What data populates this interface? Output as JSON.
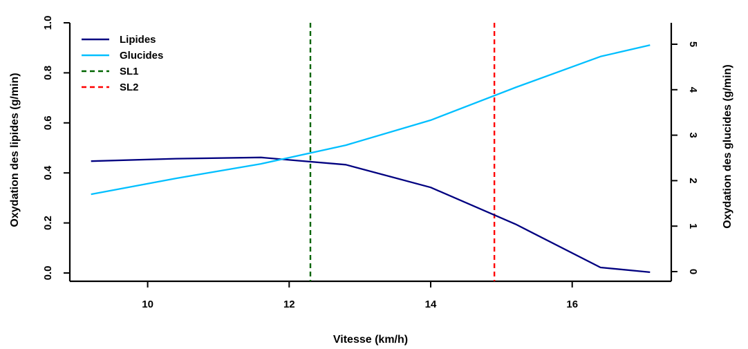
{
  "chart_data": {
    "type": "line",
    "xlabel": "Vitesse (km/h)",
    "ylabel_left": "Oxydation des lipides (g/min)",
    "ylabel_right": "Oxydation des glucides (g/min)",
    "xlim": [
      8.9,
      17.4
    ],
    "ylim_left": [
      -0.04,
      1.0
    ],
    "ylim_right": [
      -0.1,
      5.4
    ],
    "x_ticks": [
      "10",
      "12",
      "14",
      "16"
    ],
    "y_left_ticks": [
      "0.0",
      "0.2",
      "0.4",
      "0.6",
      "0.8",
      "1.0"
    ],
    "y_right_ticks": [
      "0",
      "1",
      "2",
      "3",
      "4",
      "5"
    ],
    "series": [
      {
        "name": "Lipides",
        "axis": "left",
        "color": "#000080",
        "x": [
          9.2,
          10.4,
          11.6,
          12.0,
          12.8,
          14.0,
          15.2,
          16.4,
          17.1
        ],
        "y": [
          0.447,
          0.457,
          0.462,
          0.452,
          0.433,
          0.342,
          0.195,
          0.022,
          0.003
        ]
      },
      {
        "name": "Glucides",
        "axis": "right",
        "color": "#00BFFF",
        "x": [
          9.2,
          10.4,
          11.6,
          12.8,
          14.0,
          15.2,
          16.4,
          17.1
        ],
        "y": [
          1.7,
          2.05,
          2.37,
          2.78,
          3.33,
          4.05,
          4.73,
          4.98
        ]
      }
    ],
    "vlines": [
      {
        "name": "SL1",
        "x": 12.3,
        "color": "#006400"
      },
      {
        "name": "SL2",
        "x": 14.9,
        "color": "#FF0000"
      }
    ],
    "legend": {
      "position": "top-left",
      "entries": [
        {
          "label": "Lipides",
          "color": "#000080",
          "style": "solid"
        },
        {
          "label": "Glucides",
          "color": "#00BFFF",
          "style": "solid"
        },
        {
          "label": "SL1",
          "color": "#006400",
          "style": "dashed"
        },
        {
          "label": "SL2",
          "color": "#FF0000",
          "style": "dashed"
        }
      ]
    }
  }
}
